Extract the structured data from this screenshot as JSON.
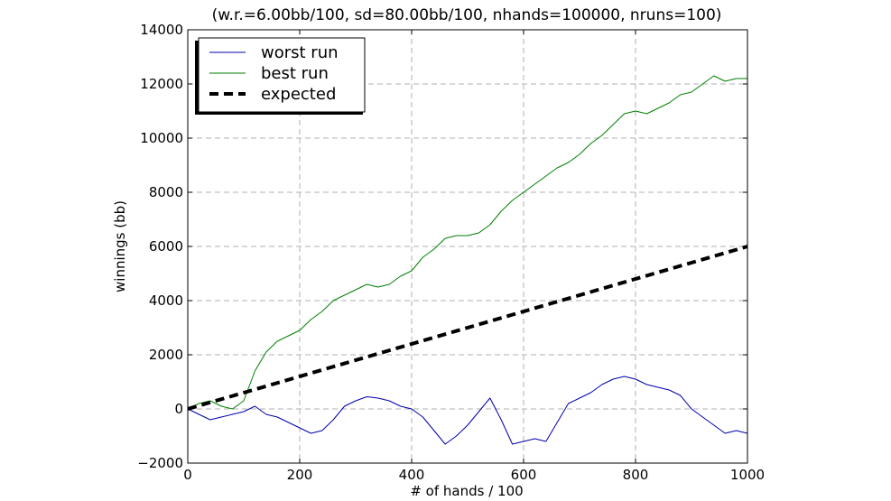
{
  "chart_data": {
    "type": "line",
    "title": "(w.r.=6.00bb/100, sd=80.00bb/100, nhands=100000, nruns=100)",
    "xlabel": "# of hands / 100",
    "ylabel": "winnings (bb)",
    "xlim": [
      0,
      1000
    ],
    "ylim": [
      -2000,
      14000
    ],
    "xticks": [
      0,
      200,
      400,
      600,
      800,
      1000
    ],
    "yticks": [
      -2000,
      0,
      2000,
      4000,
      6000,
      8000,
      10000,
      12000,
      14000
    ],
    "xtick_labels": [
      "0",
      "200",
      "400",
      "600",
      "800",
      "1000"
    ],
    "ytick_labels": [
      "−2000",
      "0",
      "2000",
      "4000",
      "6000",
      "8000",
      "10000",
      "12000",
      "14000"
    ],
    "grid": true,
    "legend_position": "top-left",
    "series": [
      {
        "name": "worst run",
        "color": "#0000aa",
        "style": "solid",
        "x": [
          0,
          20,
          40,
          60,
          80,
          100,
          120,
          140,
          160,
          180,
          200,
          220,
          240,
          260,
          280,
          300,
          320,
          340,
          360,
          380,
          400,
          420,
          440,
          460,
          480,
          500,
          520,
          540,
          560,
          580,
          600,
          620,
          640,
          660,
          680,
          700,
          720,
          740,
          760,
          780,
          800,
          820,
          840,
          860,
          880,
          900,
          920,
          940,
          960,
          980,
          1000
        ],
        "y": [
          0,
          -200,
          -400,
          -300,
          -200,
          -100,
          100,
          -200,
          -300,
          -500,
          -700,
          -900,
          -800,
          -400,
          100,
          300,
          450,
          400,
          300,
          100,
          0,
          -300,
          -800,
          -1300,
          -1000,
          -600,
          -100,
          400,
          -400,
          -1300,
          -1200,
          -1100,
          -1200,
          -500,
          200,
          400,
          600,
          900,
          1100,
          1200,
          1100,
          900,
          800,
          700,
          500,
          0,
          -300,
          -600,
          -900,
          -800,
          -900
        ]
      },
      {
        "name": "best run",
        "color": "#007f00",
        "style": "solid",
        "x": [
          0,
          20,
          40,
          60,
          80,
          100,
          120,
          140,
          160,
          180,
          200,
          220,
          240,
          260,
          280,
          300,
          320,
          340,
          360,
          380,
          400,
          420,
          440,
          460,
          480,
          500,
          520,
          540,
          560,
          580,
          600,
          620,
          640,
          660,
          680,
          700,
          720,
          740,
          760,
          780,
          800,
          820,
          840,
          860,
          880,
          900,
          920,
          940,
          960,
          980,
          1000
        ],
        "y": [
          0,
          200,
          300,
          100,
          0,
          300,
          1400,
          2100,
          2500,
          2700,
          2900,
          3300,
          3600,
          4000,
          4200,
          4400,
          4600,
          4500,
          4600,
          4900,
          5100,
          5600,
          5900,
          6300,
          6400,
          6400,
          6500,
          6800,
          7300,
          7700,
          8000,
          8300,
          8600,
          8900,
          9100,
          9400,
          9800,
          10100,
          10500,
          10900,
          11000,
          10900,
          11100,
          11300,
          11600,
          11700,
          12000,
          12300,
          12100,
          12200,
          12200
        ]
      },
      {
        "name": "expected",
        "color": "#000000",
        "style": "dashed",
        "x": [
          0,
          1000
        ],
        "y": [
          0,
          6000
        ]
      }
    ]
  }
}
